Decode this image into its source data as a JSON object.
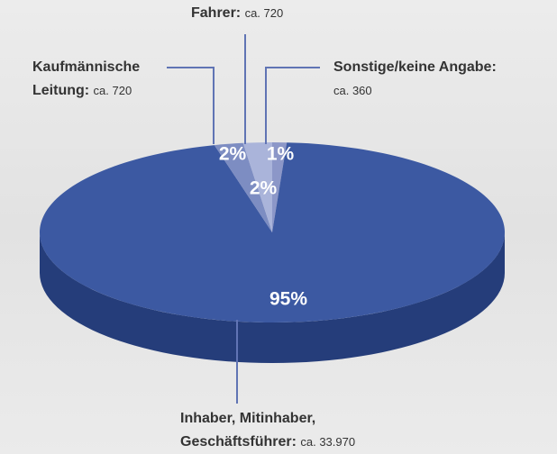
{
  "chart_data": {
    "type": "pie",
    "categories": [
      "Sonstige/keine Angabe:",
      "Inhaber, Mitinhaber, Geschäftsführer:",
      "Kaufmännische Leitung:",
      "Fahrer:"
    ],
    "values": [
      1,
      95,
      2,
      2
    ],
    "value_labels": [
      "1%",
      "95%",
      "2%",
      "2%"
    ],
    "count_labels": [
      "ca. 360",
      "ca. 33.970",
      "ca. 720",
      "ca. 720"
    ],
    "colors": [
      "#8c97c8",
      "#3c59a2",
      "#7d8dc2",
      "#aab4da"
    ]
  }
}
